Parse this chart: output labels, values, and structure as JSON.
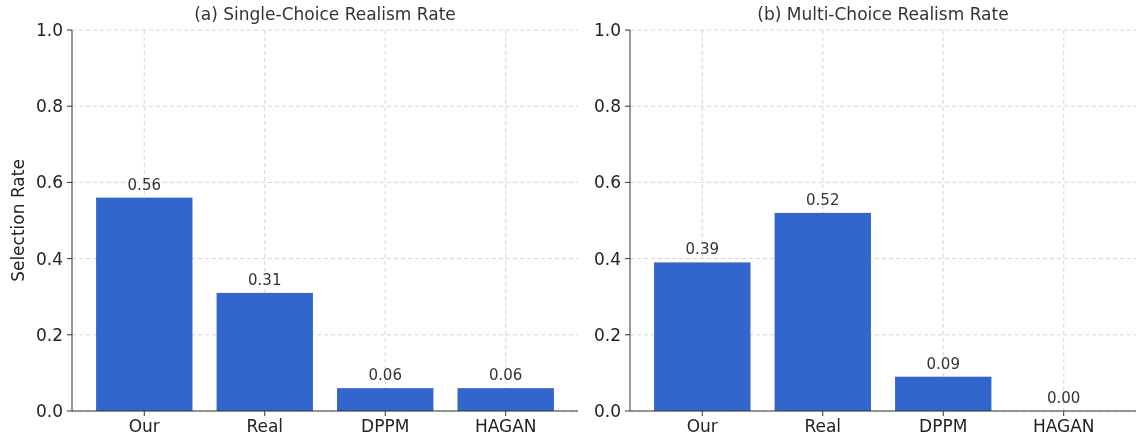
{
  "chart_data": [
    {
      "type": "bar",
      "title": "(a) Single-Choice Realism Rate",
      "ylabel": "Selection Rate",
      "categories": [
        "Our",
        "Real",
        "DPPM",
        "HAGAN"
      ],
      "series": [
        {
          "color": "#3366cc",
          "values": [
            0.56,
            0.31,
            0.06,
            0.06
          ],
          "value_labels": [
            "0.56",
            "0.31",
            "0.06",
            "0.06"
          ]
        }
      ],
      "ylim": [
        0,
        1
      ],
      "yticks": [
        {
          "value": 0,
          "label": "0.0"
        },
        {
          "value": 0.2,
          "label": "0.2"
        },
        {
          "value": 0.4,
          "label": "0.4"
        },
        {
          "value": 0.6,
          "label": "0.6"
        },
        {
          "value": 0.8,
          "label": "0.8"
        },
        {
          "value": 1,
          "label": "1.0"
        }
      ],
      "grid": true
    },
    {
      "type": "bar",
      "title": "(b) Multi-Choice Realism Rate",
      "categories": [
        "Our",
        "Real",
        "DPPM",
        "HAGAN"
      ],
      "series": [
        {
          "color": "#3366cc",
          "values": [
            0.39,
            0.52,
            0.09,
            0.0
          ],
          "value_labels": [
            "0.39",
            "0.52",
            "0.09",
            "0.00"
          ]
        }
      ],
      "ylim": [
        0,
        1
      ],
      "yticks": [
        {
          "value": 0,
          "label": "0.0"
        },
        {
          "value": 0.2,
          "label": "0.2"
        },
        {
          "value": 0.4,
          "label": "0.4"
        },
        {
          "value": 0.6,
          "label": "0.6"
        },
        {
          "value": 0.8,
          "label": "0.8"
        },
        {
          "value": 1,
          "label": "1.0"
        }
      ],
      "grid": true
    }
  ]
}
